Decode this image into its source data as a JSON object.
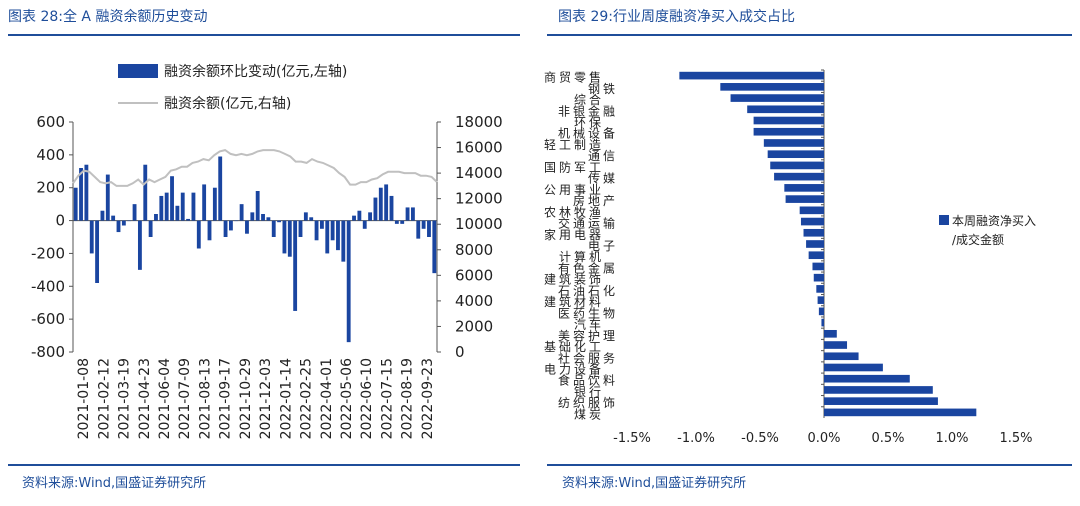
{
  "left_panel": {
    "title": "图表 28:全 A 融资余额历史变动",
    "source": "资料来源:Wind,国盛证券研究所"
  },
  "right_panel": {
    "title": "图表 29:行业周度融资净买入成交占比",
    "source": "资料来源:Wind,国盛证券研究所"
  },
  "colors": {
    "bar": "#1a45a0",
    "line": "#c0c0c0",
    "accent": "#1f4e9a"
  },
  "chart_data": [
    {
      "type": "bar",
      "title": "全 A 融资余额历史变动",
      "legend": [
        "融资余额环比变动(亿元,左轴)",
        "融资余额(亿元,右轴)"
      ],
      "legend_position": "top",
      "x_tick_labels": [
        "2021-01-08",
        "2021-02-12",
        "2021-03-19",
        "2021-04-23",
        "2021-06-04",
        "2021-07-09",
        "2021-08-13",
        "2021-09-17",
        "2021-10-29",
        "2021-12-03",
        "2022-01-14",
        "2022-02-25",
        "2022-04-01",
        "2022-05-06",
        "2022-06-10",
        "2022-07-15",
        "2022-08-19",
        "2022-09-23"
      ],
      "y_left": {
        "min": -800,
        "max": 600,
        "ticks": [
          600,
          400,
          200,
          0,
          -200,
          -400,
          -600,
          -800
        ]
      },
      "y_right": {
        "min": 0,
        "max": 18000,
        "ticks": [
          18000,
          16000,
          14000,
          12000,
          10000,
          8000,
          6000,
          4000,
          2000,
          0
        ]
      },
      "series": [
        {
          "name": "融资余额环比变动(亿元,左轴)",
          "type": "bar",
          "axis": "left",
          "values": [
            200,
            320,
            340,
            -200,
            -380,
            60,
            280,
            30,
            -70,
            -30,
            0,
            100,
            -300,
            340,
            -100,
            40,
            150,
            170,
            270,
            90,
            170,
            10,
            170,
            -170,
            220,
            -120,
            200,
            390,
            -100,
            -60,
            0,
            100,
            -80,
            50,
            180,
            40,
            20,
            -100,
            -10,
            -200,
            -220,
            -550,
            -100,
            50,
            20,
            -120,
            -50,
            -200,
            -120,
            -180,
            -250,
            -740,
            30,
            60,
            -50,
            50,
            140,
            200,
            220,
            150,
            -20,
            -20,
            80,
            80,
            -110,
            -50,
            -100,
            -320
          ]
        },
        {
          "name": "融资余额(亿元,右轴)",
          "type": "line",
          "axis": "right",
          "values": [
            13200,
            13800,
            14200,
            14100,
            13700,
            13300,
            13200,
            13300,
            13000,
            13000,
            13000,
            13200,
            13500,
            13100,
            13500,
            13300,
            13500,
            13700,
            14200,
            14300,
            14500,
            14500,
            14800,
            14900,
            15100,
            15000,
            15400,
            15700,
            15800,
            15500,
            15400,
            15500,
            15400,
            15500,
            15700,
            15800,
            15800,
            15800,
            15700,
            15500,
            15300,
            14900,
            14900,
            14800,
            15100,
            14900,
            14800,
            14600,
            14400,
            14000,
            13700,
            13100,
            13100,
            13300,
            13300,
            13500,
            13600,
            13900,
            14100,
            14100,
            14100,
            14000,
            14000,
            14000,
            13800,
            13800,
            13700,
            13300
          ]
        }
      ]
    },
    {
      "type": "bar",
      "orientation": "horizontal",
      "title": "行业周度融资净买入成交占比",
      "legend": [
        "本周融资净买入/成交金额"
      ],
      "legend_position": "right",
      "categories": [
        "商贸零售",
        "钢铁",
        "综合",
        "非银金融",
        "环保",
        "机械设备",
        "轻工制造",
        "通信",
        "国防军工",
        "传媒",
        "公用事业",
        "房地产",
        "农林牧渔",
        "交通运输",
        "家用电器",
        "电子",
        "计算机",
        "有色金属",
        "建筑装饰",
        "石油石化",
        "建筑材料",
        "医药生物",
        "汽车",
        "美容护理",
        "基础化工",
        "社会服务",
        "电力设备",
        "食品饮料",
        "银行",
        "纺织服饰",
        "煤炭"
      ],
      "values": [
        -1.13,
        -0.81,
        -0.73,
        -0.6,
        -0.55,
        -0.55,
        -0.47,
        -0.44,
        -0.42,
        -0.39,
        -0.31,
        -0.3,
        -0.19,
        -0.18,
        -0.16,
        -0.14,
        -0.12,
        -0.09,
        -0.08,
        -0.06,
        -0.05,
        -0.04,
        -0.02,
        0.1,
        0.18,
        0.27,
        0.46,
        0.67,
        0.85,
        0.89,
        1.19
      ],
      "x_ticks": [
        "-1.5%",
        "-1.0%",
        "-0.5%",
        "0.0%",
        "0.5%",
        "1.0%",
        "1.5%"
      ],
      "xlim": [
        -1.5,
        1.5
      ],
      "unit": "%"
    }
  ]
}
